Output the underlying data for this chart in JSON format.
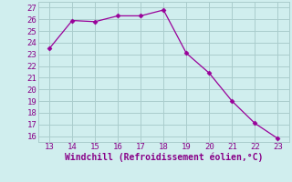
{
  "x": [
    13,
    14,
    15,
    16,
    17,
    18,
    19,
    20,
    21,
    22,
    23
  ],
  "y": [
    23.5,
    25.9,
    25.8,
    26.3,
    26.3,
    26.8,
    23.1,
    21.4,
    19.0,
    17.1,
    15.8
  ],
  "xlim": [
    12.5,
    23.5
  ],
  "ylim": [
    15.5,
    27.5
  ],
  "xticks": [
    13,
    14,
    15,
    16,
    17,
    18,
    19,
    20,
    21,
    22,
    23
  ],
  "yticks": [
    16,
    17,
    18,
    19,
    20,
    21,
    22,
    23,
    24,
    25,
    26,
    27
  ],
  "xlabel": "Windchill (Refroidissement éolien,°C)",
  "line_color": "#990099",
  "marker": "D",
  "marker_size": 2.5,
  "bg_color": "#d0eeee",
  "grid_color": "#aacccc",
  "font_color": "#880088",
  "tick_fontsize": 6.5,
  "xlabel_fontsize": 7.0
}
